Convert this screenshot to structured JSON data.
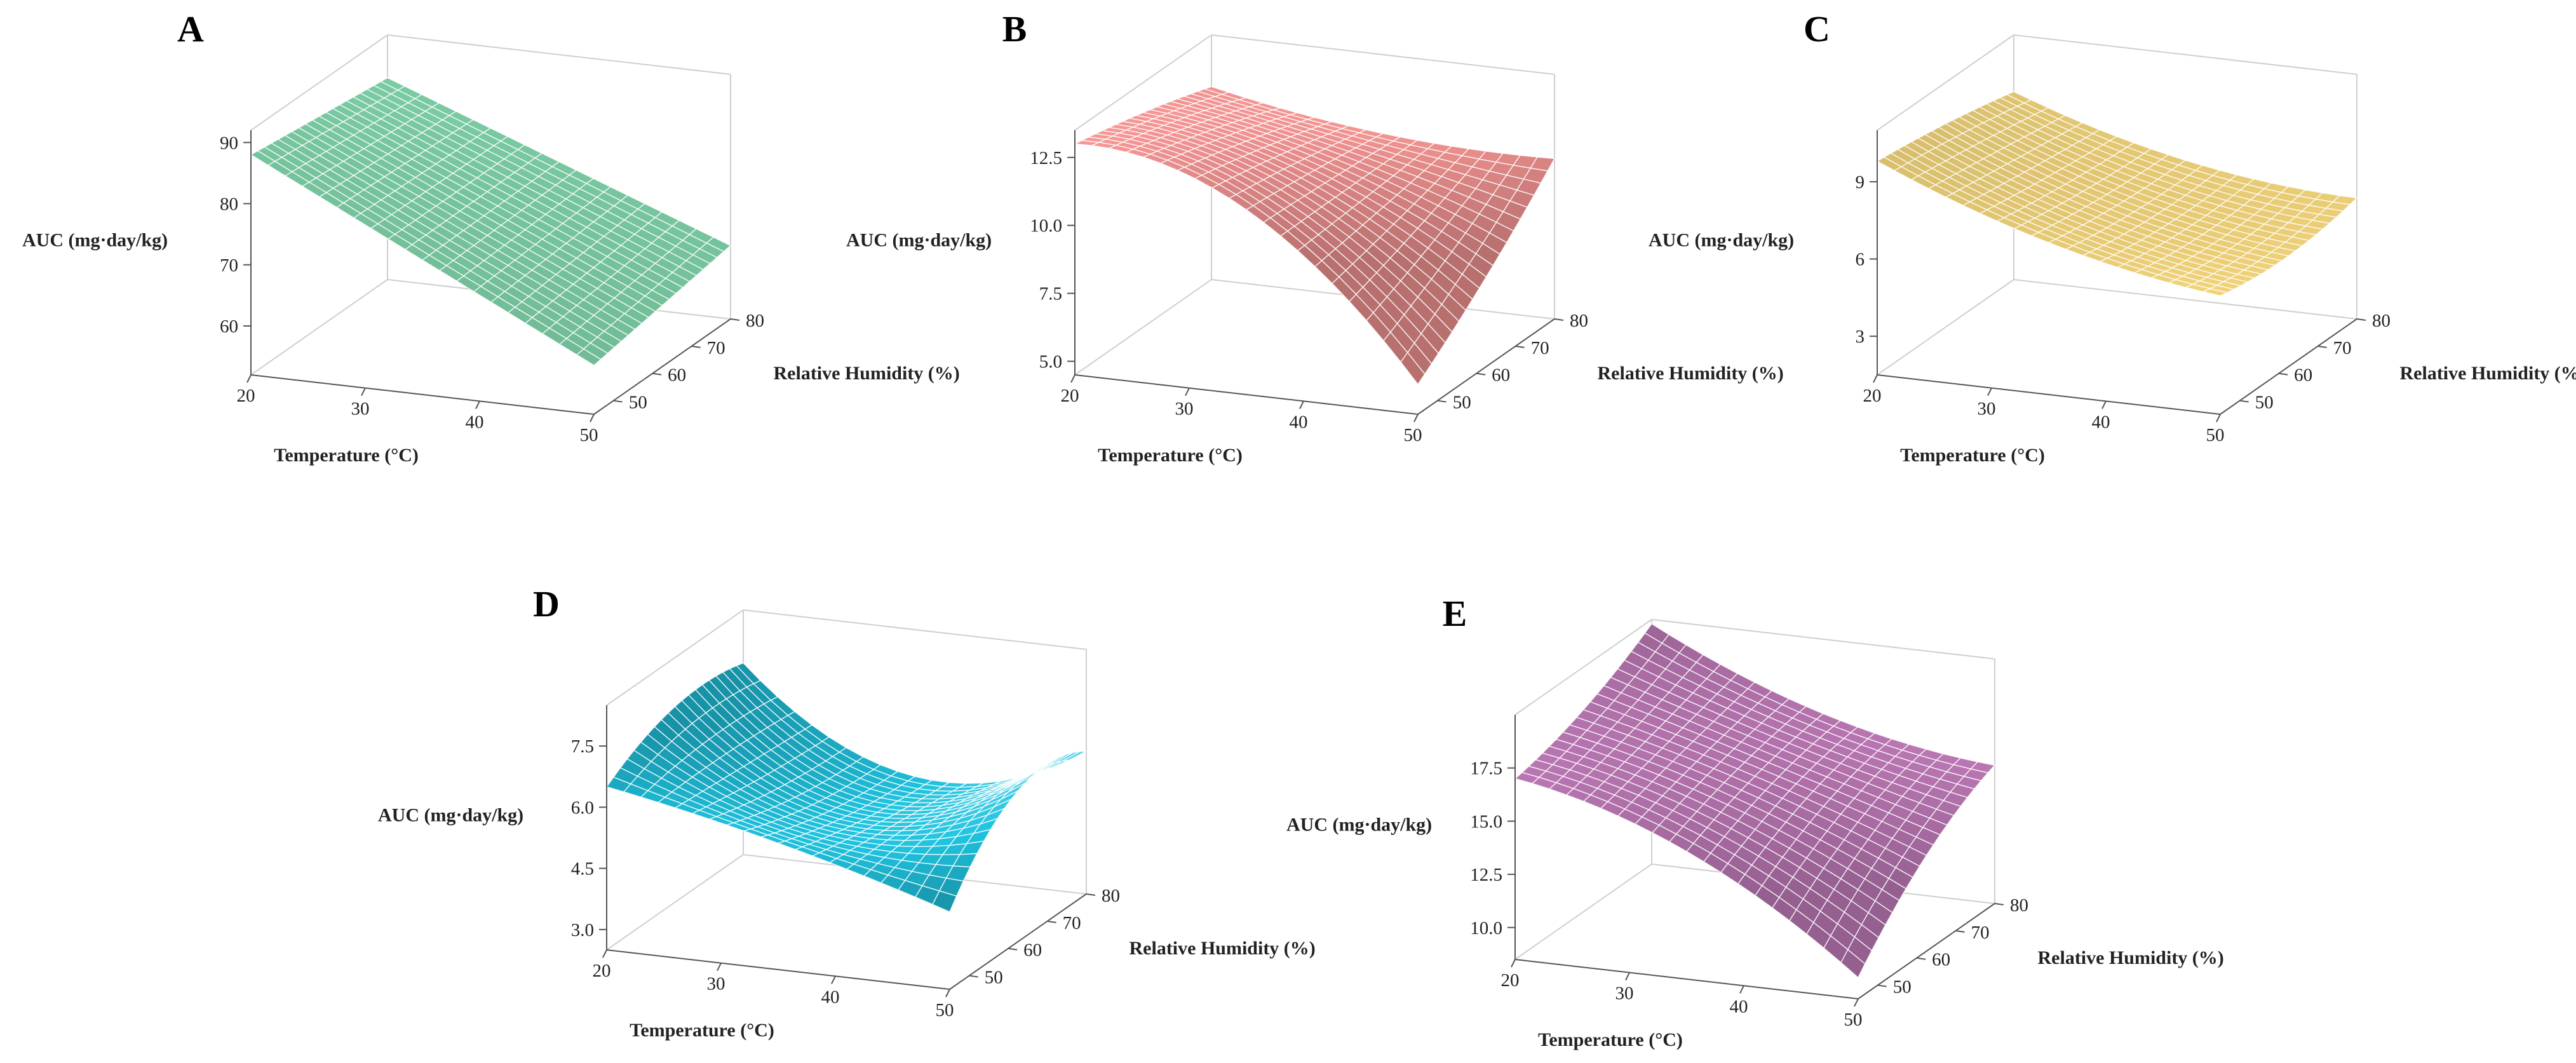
{
  "figure": {
    "xlabel": "Temperature (°C)",
    "ylabel": "Relative Humidity (%)",
    "zlabel": "AUC (mg·day/kg)"
  },
  "chart_data": [
    {
      "panel": "A",
      "type": "surface3d",
      "title": "",
      "xlabel": "Temperature (°C)",
      "ylabel": "Relative Humidity (%)",
      "zlabel": "AUC (mg·day/kg)",
      "xlim": [
        20,
        50
      ],
      "ylim": [
        45,
        80
      ],
      "zlim": [
        52,
        92
      ],
      "xticks": [
        "20",
        "30",
        "40",
        "50"
      ],
      "yticks": [
        "50",
        "60",
        "70",
        "80"
      ],
      "zticks": [
        "60",
        "70",
        "80",
        "90"
      ],
      "x": [
        20,
        50
      ],
      "y": [
        45,
        80
      ],
      "z": [
        [
          88,
          85
        ],
        [
          60,
          64
        ]
      ],
      "color": "#86dfb3"
    },
    {
      "panel": "B",
      "type": "surface3d",
      "title": "",
      "xlabel": "Temperature (°C)",
      "ylabel": "Relative Humidity (%)",
      "zlabel": "AUC (mg·day/kg)",
      "xlim": [
        20,
        50
      ],
      "ylim": [
        45,
        80
      ],
      "zlim": [
        4.5,
        13.5
      ],
      "xticks": [
        "20",
        "30",
        "40",
        "50"
      ],
      "yticks": [
        "50",
        "60",
        "70",
        "80"
      ],
      "zticks": [
        "5.0",
        "7.5",
        "10.0",
        "12.5"
      ],
      "x": [
        20,
        35,
        50
      ],
      "y": [
        45,
        62.5,
        80
      ],
      "z": [
        [
          13.0,
          12.4,
          11.6
        ],
        [
          11.3,
          11.0,
          10.6
        ],
        [
          5.6,
          7.8,
          10.4
        ]
      ],
      "color": "#f49593"
    },
    {
      "panel": "C",
      "type": "surface3d",
      "title": "",
      "xlabel": "Temperature (°C)",
      "ylabel": "Relative Humidity (%)",
      "zlabel": "AUC (mg·day/kg)",
      "xlim": [
        20,
        50
      ],
      "ylim": [
        45,
        80
      ],
      "zlim": [
        1.5,
        11
      ],
      "xticks": [
        "20",
        "30",
        "40",
        "50"
      ],
      "yticks": [
        "50",
        "60",
        "70",
        "80"
      ],
      "zticks": [
        "3",
        "6",
        "9"
      ],
      "x": [
        20,
        35,
        50
      ],
      "y": [
        45,
        62.5,
        80
      ],
      "z": [
        [
          9.8,
          9.4,
          8.8
        ],
        [
          7.4,
          7.0,
          6.9
        ],
        [
          6.1,
          5.8,
          6.2
        ]
      ],
      "color": "#f3d57a"
    },
    {
      "panel": "D",
      "type": "surface3d",
      "title": "",
      "xlabel": "Temperature (°C)",
      "ylabel": "Relative Humidity (%)",
      "zlabel": "AUC (mg·day/kg)",
      "xlim": [
        20,
        50
      ],
      "ylim": [
        45,
        80
      ],
      "zlim": [
        2.5,
        8.5
      ],
      "xticks": [
        "20",
        "30",
        "40",
        "50"
      ],
      "yticks": [
        "50",
        "60",
        "70",
        "80"
      ],
      "zticks": [
        "3.0",
        "4.5",
        "6.0",
        "7.5"
      ],
      "x": [
        20,
        35,
        50
      ],
      "y": [
        45,
        62.5,
        80
      ],
      "z": [
        [
          6.5,
          7.3,
          7.2
        ],
        [
          5.6,
          5.1,
          4.9
        ],
        [
          4.4,
          6.2,
          6.0
        ]
      ],
      "color": "#1fc3df"
    },
    {
      "panel": "E",
      "type": "surface3d",
      "title": "",
      "xlabel": "Temperature (°C)",
      "ylabel": "Relative Humidity (%)",
      "zlabel": "AUC (mg·day/kg)",
      "xlim": [
        20,
        50
      ],
      "ylim": [
        45,
        80
      ],
      "zlim": [
        8.5,
        20
      ],
      "xticks": [
        "20",
        "30",
        "40",
        "50"
      ],
      "yticks": [
        "50",
        "60",
        "70",
        "80"
      ],
      "zticks": [
        "10.0",
        "12.5",
        "15.0",
        "17.5"
      ],
      "x": [
        20,
        35,
        50
      ],
      "y": [
        45,
        62.5,
        80
      ],
      "z": [
        [
          17.0,
          18.0,
          19.8
        ],
        [
          14.5,
          15.8,
          16.5
        ],
        [
          9.5,
          13.0,
          15.0
        ]
      ],
      "color": "#c77fc0"
    }
  ]
}
